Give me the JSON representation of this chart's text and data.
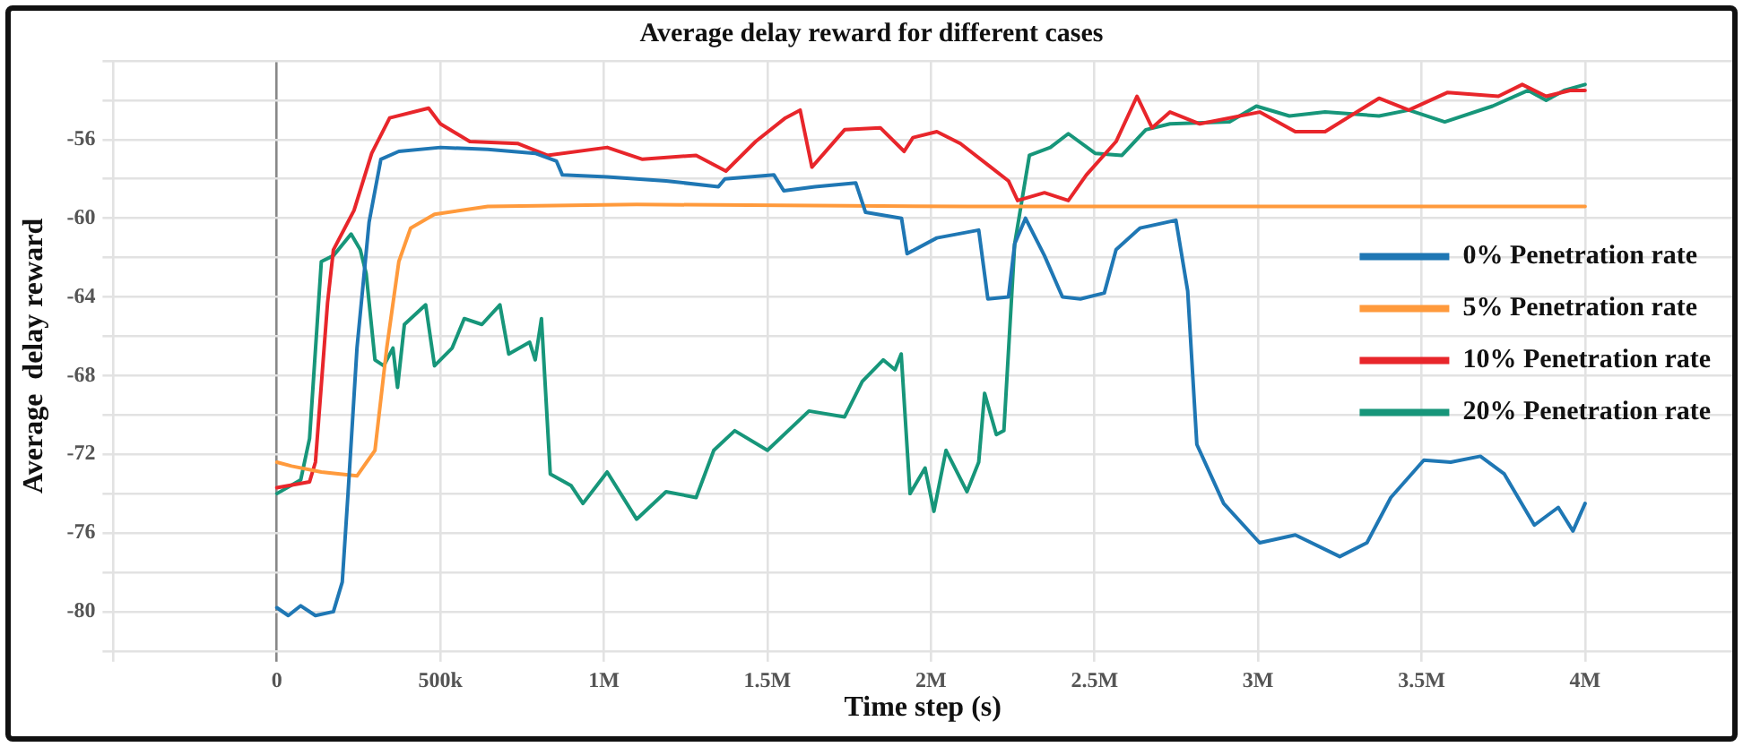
{
  "chart_data": {
    "type": "line",
    "title": "Average delay reward for different cases",
    "xlabel": "Time step (s)",
    "ylabel": "Average  delay reward",
    "xlim": [
      -500000,
      4450000
    ],
    "xticks": [
      {
        "value": -500000,
        "label": null
      },
      0,
      {
        "value": 500000,
        "label": "500k"
      },
      {
        "value": 1000000,
        "label": "1M"
      },
      {
        "value": 1500000,
        "label": "1.5M"
      },
      {
        "value": 2000000,
        "label": "2M"
      },
      {
        "value": 2500000,
        "label": "2.5M"
      },
      {
        "value": 3000000,
        "label": "3M"
      },
      {
        "value": 3500000,
        "label": "3.5M"
      },
      {
        "value": 4000000,
        "label": "4M"
      }
    ],
    "ylim": [
      -82,
      -52
    ],
    "yticks": [
      {
        "value": -82,
        "label": null
      },
      -80,
      {
        "value": -78,
        "label": null
      },
      -76,
      {
        "value": -74,
        "label": null
      },
      -72,
      {
        "value": -70,
        "label": null
      },
      -68,
      {
        "value": -66,
        "label": null
      },
      -64,
      {
        "value": -62,
        "label": null
      },
      -60,
      {
        "value": -58,
        "label": null
      },
      -56,
      {
        "value": -54,
        "label": null
      },
      {
        "value": -52,
        "label": null
      }
    ],
    "grid": true,
    "legend": "right",
    "marker": "none",
    "line_style": "solid",
    "series": [
      {
        "name": "0% Penetration rate",
        "color": "#1f77b4",
        "x": [
          0,
          35000,
          73000,
          118000,
          173000,
          200000,
          218000,
          245000,
          282000,
          318000,
          373000,
          500000,
          645000,
          790000,
          855000,
          873000,
          1010000,
          1190000,
          1350000,
          1370000,
          1520000,
          1550000,
          1645000,
          1770000,
          1800000,
          1910000,
          1927000,
          2018000,
          2146000,
          2174000,
          2237000,
          2256000,
          2289000,
          2347000,
          2402000,
          2457000,
          2530000,
          2566000,
          2639000,
          2749000,
          2785000,
          2813000,
          2895000,
          3005000,
          3114000,
          3250000,
          3333000,
          3406000,
          3507000,
          3589000,
          3680000,
          3753000,
          3845000,
          3918000,
          3963000,
          4000000
        ],
        "values": [
          -79.8,
          -80.2,
          -79.7,
          -80.2,
          -80,
          -78.5,
          -73.9,
          -66.6,
          -60.2,
          -57,
          -56.6,
          -56.4,
          -56.5,
          -56.7,
          -57.1,
          -57.8,
          -57.9,
          -58.1,
          -58.4,
          -58,
          -57.8,
          -58.6,
          -58.4,
          -58.2,
          -59.7,
          -60,
          -61.8,
          -61,
          -60.6,
          -64.1,
          -64,
          -61.3,
          -60,
          -61.9,
          -64,
          -64.1,
          -63.8,
          -61.6,
          -60.5,
          -60.1,
          -63.7,
          -71.5,
          -74.5,
          -76.5,
          -76.1,
          -77.2,
          -76.5,
          -74.2,
          -72.3,
          -72.4,
          -72.1,
          -73,
          -75.6,
          -74.7,
          -75.9,
          -74.5
        ]
      },
      {
        "name": "5% Penetration rate",
        "color": "#ff9a3c",
        "x": [
          0,
          45000,
          136000,
          245000,
          300000,
          336000,
          373000,
          409000,
          482000,
          645000,
          1100000,
          2110000,
          4000000
        ],
        "values": [
          -72.4,
          -72.6,
          -72.9,
          -73.1,
          -71.8,
          -66.6,
          -62.2,
          -60.5,
          -59.8,
          -59.4,
          -59.3,
          -59.4,
          -59.4
        ]
      },
      {
        "name": "10% Penetration rate",
        "color": "#e8262b",
        "x": [
          0,
          100000,
          118000,
          155000,
          173000,
          236000,
          290000,
          345000,
          464000,
          500000,
          590000,
          736000,
          827000,
          1010000,
          1118000,
          1282000,
          1373000,
          1464000,
          1555000,
          1600000,
          1636000,
          1736000,
          1845000,
          1918000,
          1945000,
          2018000,
          2090000,
          2183000,
          2237000,
          2265000,
          2347000,
          2420000,
          2475000,
          2566000,
          2630000,
          2676000,
          2731000,
          2822000,
          3005000,
          3114000,
          3205000,
          3370000,
          3461000,
          3580000,
          3735000,
          3808000,
          3881000,
          3954000,
          4000000
        ],
        "values": [
          -73.7,
          -73.4,
          -72.4,
          -64.3,
          -61.6,
          -59.6,
          -56.7,
          -54.9,
          -54.4,
          -55.2,
          -56.1,
          -56.2,
          -56.8,
          -56.4,
          -57,
          -56.8,
          -57.6,
          -56.1,
          -54.9,
          -54.5,
          -57.4,
          -55.5,
          -55.4,
          -56.6,
          -55.9,
          -55.6,
          -56.2,
          -57.4,
          -58.1,
          -59.1,
          -58.7,
          -59.1,
          -57.8,
          -56.1,
          -53.8,
          -55.4,
          -54.6,
          -55.2,
          -54.6,
          -55.6,
          -55.6,
          -53.9,
          -54.5,
          -53.6,
          -53.8,
          -53.2,
          -53.8,
          -53.5,
          -53.5
        ]
      },
      {
        "name": "20% Penetration rate",
        "color": "#17967a",
        "x": [
          0,
          73000,
          100000,
          136000,
          173000,
          227000,
          255000,
          273000,
          300000,
          327000,
          355000,
          369000,
          390000,
          455000,
          482000,
          536000,
          573000,
          627000,
          682000,
          709000,
          773000,
          790000,
          809000,
          836000,
          900000,
          936000,
          1010000,
          1100000,
          1190000,
          1282000,
          1336000,
          1400000,
          1500000,
          1627000,
          1736000,
          1790000,
          1854000,
          1890000,
          1909000,
          1936000,
          1982000,
          2009000,
          2046000,
          2110000,
          2146000,
          2164000,
          2200000,
          2223000,
          2256000,
          2301000,
          2365000,
          2420000,
          2502000,
          2584000,
          2657000,
          2731000,
          2913000,
          2995000,
          3096000,
          3205000,
          3370000,
          3461000,
          3571000,
          3717000,
          3826000,
          3881000,
          3936000,
          4000000
        ],
        "values": [
          -74,
          -73.3,
          -71.2,
          -62.2,
          -61.9,
          -60.8,
          -61.6,
          -62.8,
          -67.2,
          -67.5,
          -66.6,
          -68.6,
          -65.4,
          -64.4,
          -67.5,
          -66.6,
          -65.1,
          -65.4,
          -64.4,
          -66.9,
          -66.3,
          -67.2,
          -65.1,
          -73,
          -73.6,
          -74.5,
          -72.9,
          -75.3,
          -73.9,
          -74.2,
          -71.8,
          -70.8,
          -71.8,
          -69.8,
          -70.1,
          -68.3,
          -67.2,
          -67.7,
          -66.9,
          -74,
          -72.7,
          -74.9,
          -71.8,
          -73.9,
          -72.4,
          -68.9,
          -71,
          -70.8,
          -61.3,
          -56.8,
          -56.4,
          -55.7,
          -56.7,
          -56.8,
          -55.5,
          -55.2,
          -55.1,
          -54.3,
          -54.8,
          -54.6,
          -54.8,
          -54.5,
          -55.1,
          -54.3,
          -53.5,
          -54,
          -53.5,
          -53.2
        ]
      }
    ]
  }
}
